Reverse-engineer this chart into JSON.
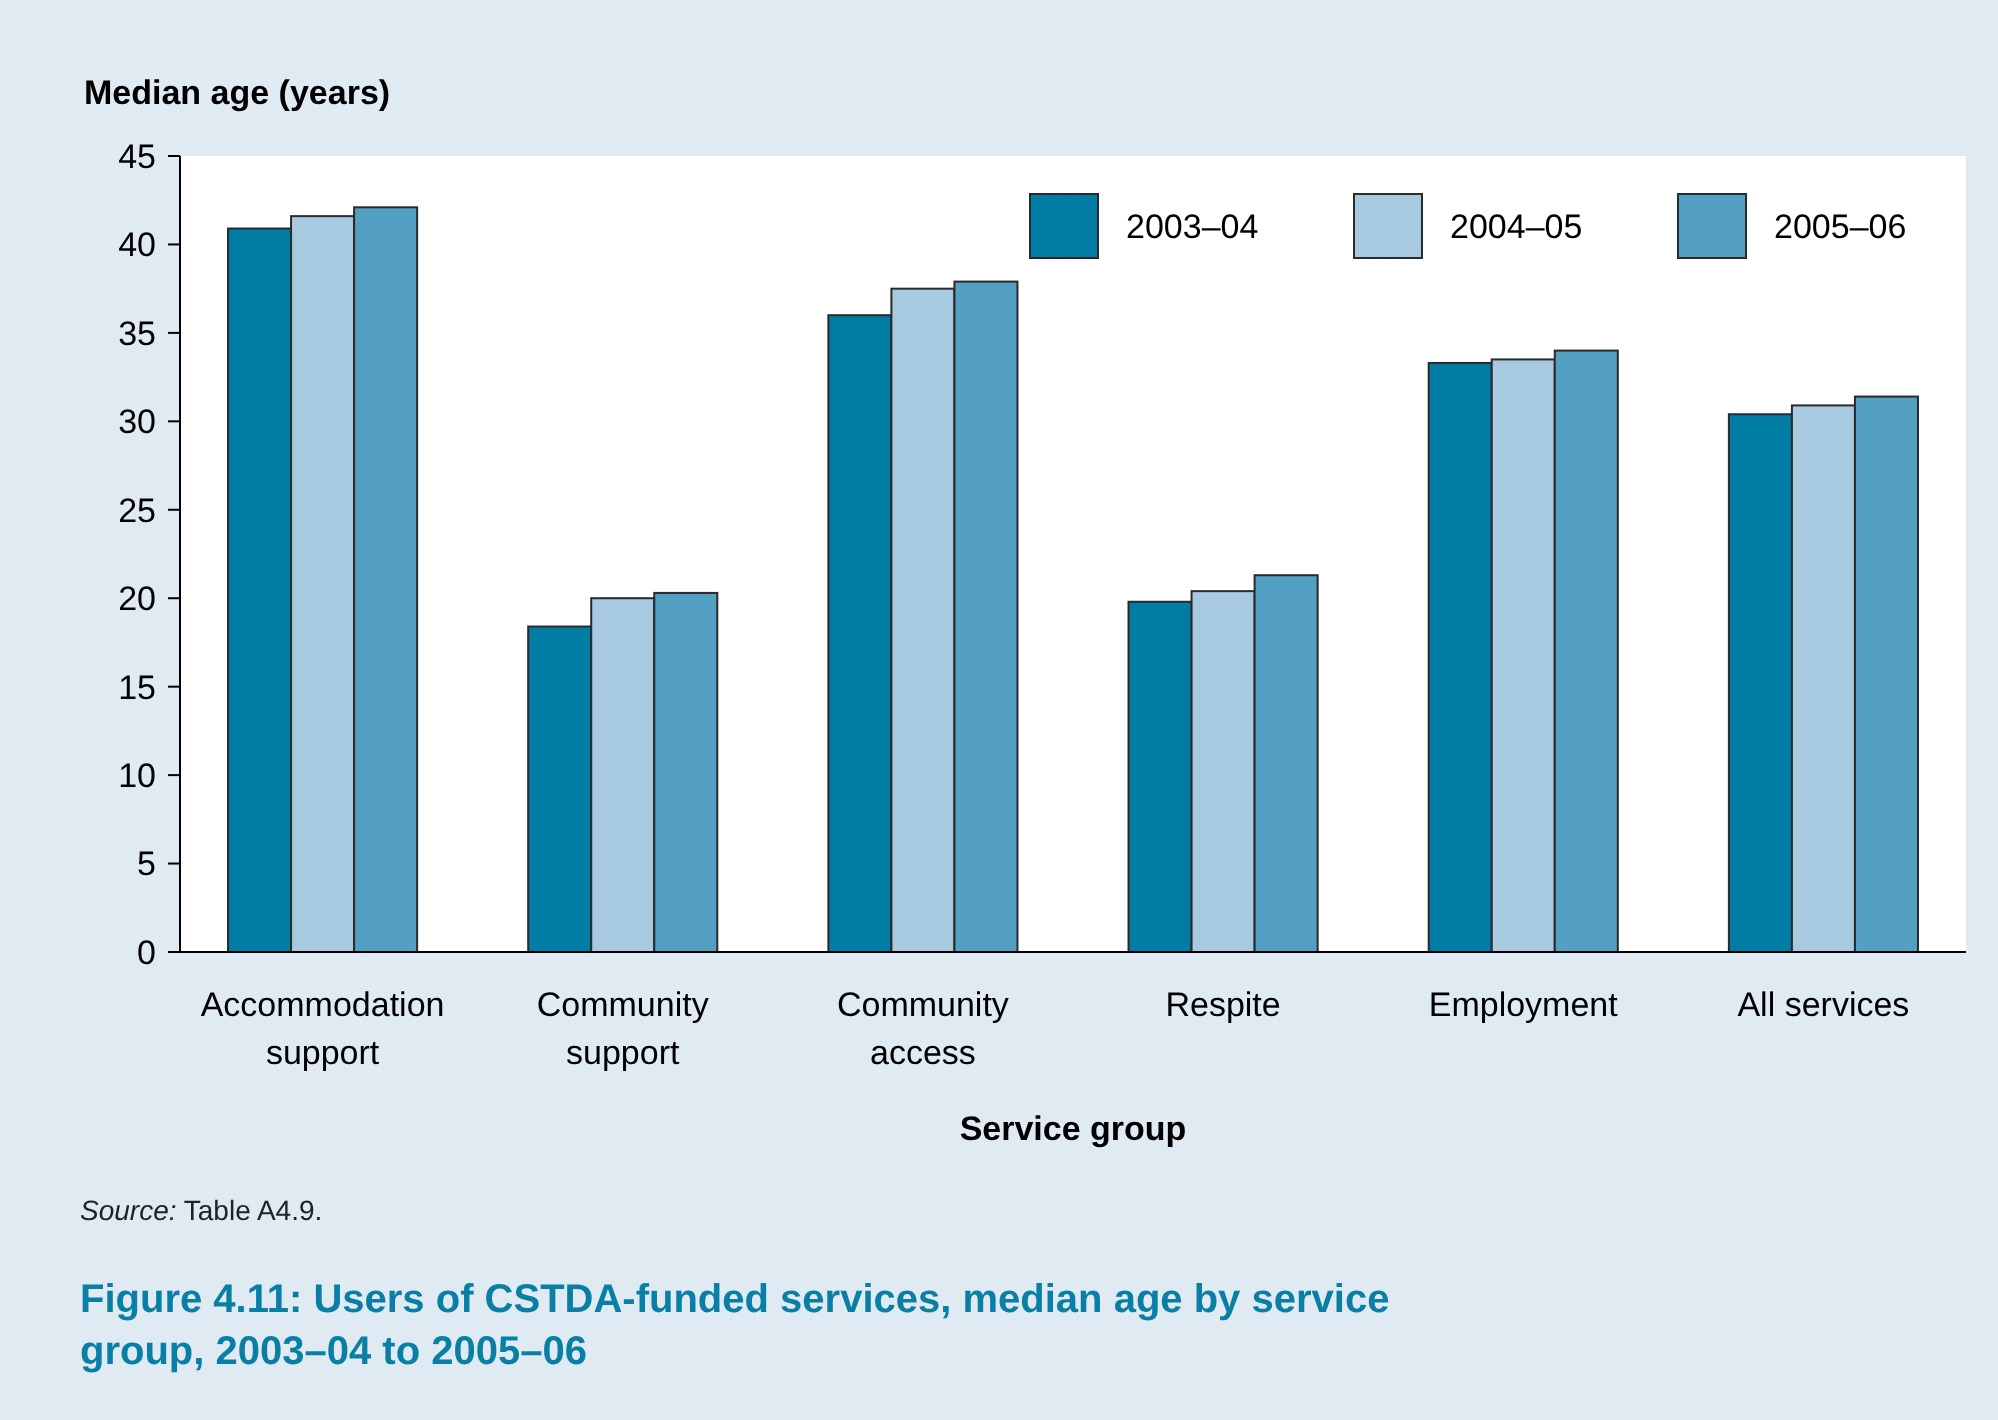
{
  "chart_data": {
    "type": "bar",
    "title": "Figure 4.11: Users of CSTDA-funded services, median age by service group, 2003–04 to 2005–06",
    "xlabel": "Service group",
    "ylabel": "Median age (years)",
    "annotations": [
      "Source: Table A4.9."
    ],
    "categories": [
      "Accommodation support",
      "Community support",
      "Community access",
      "Respite",
      "Employment",
      "All services"
    ],
    "series": [
      {
        "name": "2003–04",
        "color": "#007ca5",
        "values": [
          40.9,
          18.4,
          36.0,
          19.8,
          33.3,
          30.4
        ]
      },
      {
        "name": "2004–05",
        "color": "#a7cae0",
        "values": [
          41.6,
          20.0,
          37.5,
          20.4,
          33.5,
          30.9
        ]
      },
      {
        "name": "2005–06",
        "color": "#549fc4",
        "values": [
          42.1,
          20.3,
          37.9,
          21.3,
          34.0,
          31.4
        ]
      }
    ],
    "ylim": [
      0,
      45
    ],
    "yticks": [
      0,
      5,
      10,
      15,
      20,
      25,
      30,
      35,
      40,
      45
    ],
    "grid": false,
    "legend": "top right"
  }
}
